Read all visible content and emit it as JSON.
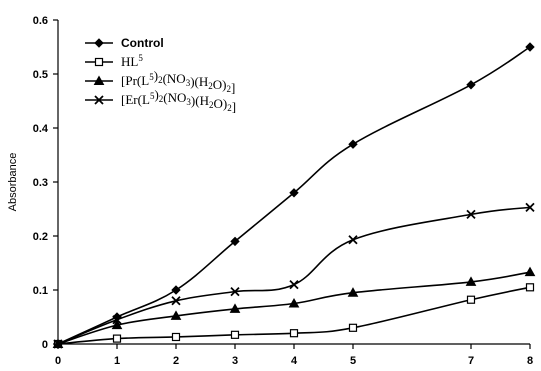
{
  "chart_data": {
    "type": "line",
    "title": "",
    "xlabel": "",
    "ylabel": "Absorbance",
    "x": [
      0,
      1,
      2,
      3,
      4,
      5,
      7,
      8
    ],
    "x_tick_labels": [
      "0",
      "1",
      "2",
      "3",
      "4",
      "5",
      "7",
      "8"
    ],
    "y_ticks": [
      0,
      0.1,
      0.2,
      0.3,
      0.4,
      0.5,
      0.6
    ],
    "y_tick_labels": [
      "0",
      "0.1",
      "0.2",
      "0.3",
      "0.4",
      "0.5",
      "0.6"
    ],
    "ylim": [
      0,
      0.6
    ],
    "grid": false,
    "legend_position": "top-left",
    "series": [
      {
        "name": "Control",
        "marker": "diamond-filled",
        "color": "#000000",
        "values": [
          0,
          0.05,
          0.1,
          0.19,
          0.28,
          0.37,
          0.48,
          0.55
        ]
      },
      {
        "name": "HL5",
        "marker": "square-open",
        "color": "#000000",
        "values": [
          0,
          0.01,
          0.013,
          0.017,
          0.02,
          0.03,
          0.082,
          0.105
        ]
      },
      {
        "name": "[Pr(L5)2(NO3)(H2O)2]",
        "marker": "triangle-filled",
        "color": "#000000",
        "values": [
          0,
          0.035,
          0.052,
          0.065,
          0.075,
          0.095,
          0.115,
          0.133
        ]
      },
      {
        "name": "[Er(L5)2(NO3)(H2O)2]",
        "marker": "x",
        "color": "#000000",
        "values": [
          0,
          0.045,
          0.08,
          0.097,
          0.11,
          0.193,
          0.24,
          0.253
        ]
      }
    ]
  }
}
